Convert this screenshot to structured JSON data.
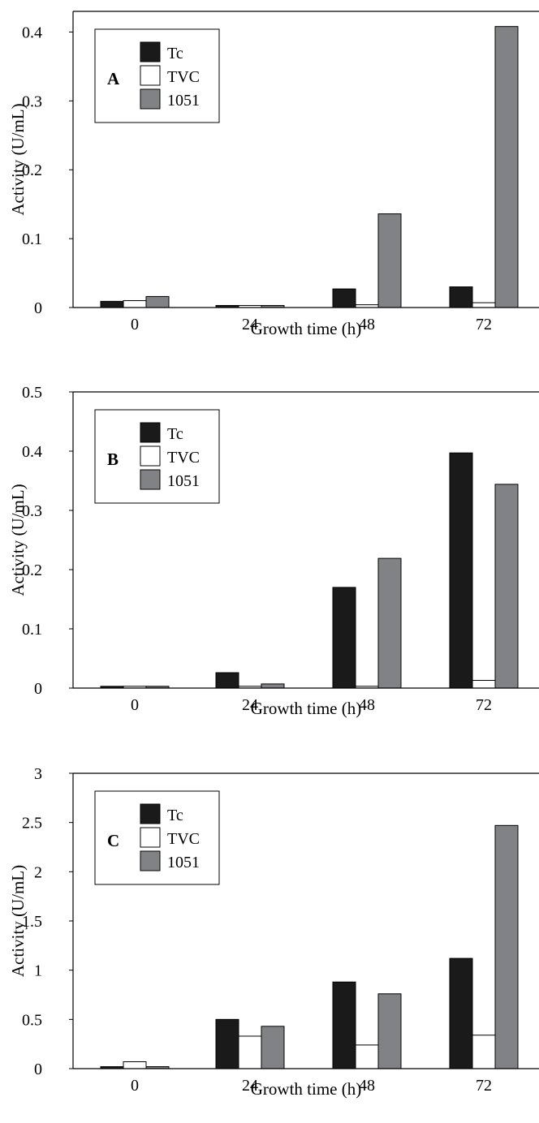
{
  "chart_data": [
    {
      "type": "bar",
      "panel_label": "A",
      "categories": [
        "0",
        "24",
        "48",
        "72"
      ],
      "series": [
        {
          "name": "Tc",
          "values": [
            0.009,
            0.003,
            0.027,
            0.03
          ]
        },
        {
          "name": "TVC",
          "values": [
            0.01,
            0.003,
            0.004,
            0.007
          ]
        },
        {
          "name": "1051",
          "values": [
            0.016,
            0.003,
            0.136,
            0.408
          ]
        }
      ],
      "xlabel": "Growth time (h)",
      "ylabel": "Activity (U/mL)",
      "ylim": [
        0,
        0.43
      ],
      "yticks": [
        0,
        0.1,
        0.2,
        0.3,
        0.4
      ],
      "ytick_labels": [
        "0",
        "0.1",
        "0.2",
        "0.3",
        "0.4"
      ],
      "legend_position": "top-left",
      "grid": false
    },
    {
      "type": "bar",
      "panel_label": "B",
      "categories": [
        "0",
        "24",
        "48",
        "72"
      ],
      "series": [
        {
          "name": "Tc",
          "values": [
            0.003,
            0.026,
            0.17,
            0.397
          ]
        },
        {
          "name": "TVC",
          "values": [
            0.003,
            0.003,
            0.003,
            0.013
          ]
        },
        {
          "name": "1051",
          "values": [
            0.003,
            0.007,
            0.219,
            0.344
          ]
        }
      ],
      "xlabel": "Growth time (h)",
      "ylabel": "Activity (U/mL)",
      "ylim": [
        0,
        0.5
      ],
      "yticks": [
        0,
        0.1,
        0.2,
        0.3,
        0.4,
        0.5
      ],
      "ytick_labels": [
        "0",
        "0.1",
        "0.2",
        "0.3",
        "0.4",
        "0.5"
      ],
      "legend_position": "top-left",
      "grid": false
    },
    {
      "type": "bar",
      "panel_label": "C",
      "categories": [
        "0",
        "24",
        "48",
        "72"
      ],
      "series": [
        {
          "name": "Tc",
          "values": [
            0.02,
            0.5,
            0.88,
            1.12
          ]
        },
        {
          "name": "TVC",
          "values": [
            0.07,
            0.33,
            0.24,
            0.34
          ]
        },
        {
          "name": "1051",
          "values": [
            0.02,
            0.43,
            0.76,
            2.47
          ]
        }
      ],
      "xlabel": "Growth time (h)",
      "ylabel": "Activity (U/mL)",
      "ylim": [
        0,
        3
      ],
      "yticks": [
        0,
        0.5,
        1,
        1.5,
        2,
        2.5,
        3
      ],
      "ytick_labels": [
        "0",
        "0.5",
        "1",
        "1.5",
        "2",
        "2.5",
        "3"
      ],
      "legend_position": "top-left",
      "grid": false
    }
  ],
  "colors": {
    "Tc": "#1a1a1a",
    "TVC": "#ffffff",
    "1051": "#808285",
    "axis": "#000000"
  }
}
